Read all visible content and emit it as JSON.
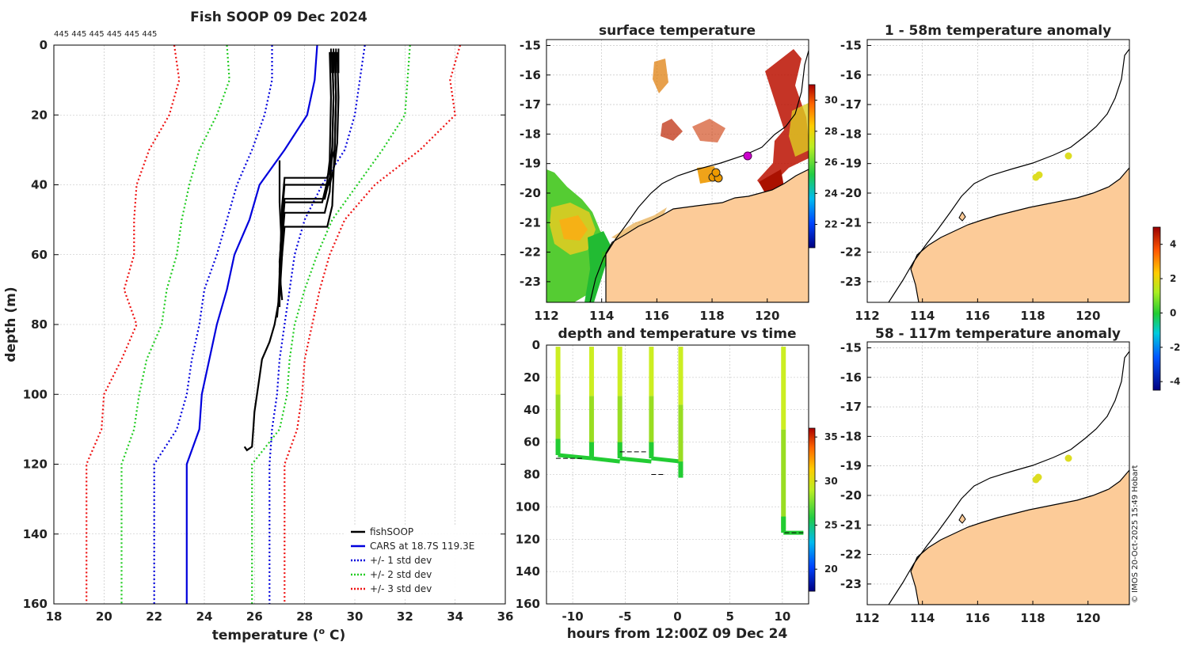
{
  "chart_data": [
    {
      "id": "profile",
      "type": "line",
      "title": "Fish SOOP 09 Dec 2024",
      "xlabel": "temperature (",
      "xlabel_sup": "o",
      "xlabel_tail": " C)",
      "ylabel": "depth (m)",
      "xlim": [
        18,
        36
      ],
      "ylim": [
        0,
        160
      ],
      "y_inverted": true,
      "xticks": [
        18,
        20,
        22,
        24,
        26,
        28,
        30,
        32,
        34,
        36
      ],
      "yticks": [
        0,
        20,
        40,
        60,
        80,
        100,
        120,
        140,
        160
      ],
      "grid": true,
      "top_annotation": "445 445 445 445 445 445",
      "legend_position": "bottom-right",
      "series": [
        {
          "name": "fishSOOP",
          "color": "#000000",
          "dash": "solid",
          "points": []
        },
        {
          "name": "CARS at 18.7S 119.3E",
          "color": "#0000dd",
          "dash": "solid",
          "points": [
            [
              28.5,
              0
            ],
            [
              28.4,
              10
            ],
            [
              28.1,
              20
            ],
            [
              27.2,
              30
            ],
            [
              26.2,
              40
            ],
            [
              25.8,
              50
            ],
            [
              25.2,
              60
            ],
            [
              24.9,
              70
            ],
            [
              24.5,
              80
            ],
            [
              24.2,
              90
            ],
            [
              23.9,
              100
            ],
            [
              23.8,
              110
            ],
            [
              23.3,
              120
            ],
            [
              23.3,
              160
            ]
          ]
        },
        {
          "name": "+/- 1 std dev",
          "color": "#0000dd",
          "dash": "dotted",
          "lines": [
            [
              [
                26.7,
                0
              ],
              [
                26.7,
                10
              ],
              [
                26.4,
                20
              ],
              [
                25.9,
                30
              ],
              [
                25.3,
                40
              ],
              [
                24.9,
                50
              ],
              [
                24.5,
                60
              ],
              [
                24.0,
                70
              ],
              [
                23.8,
                80
              ],
              [
                23.5,
                90
              ],
              [
                23.3,
                100
              ],
              [
                22.9,
                110
              ],
              [
                22.0,
                120
              ],
              [
                22.0,
                160
              ]
            ],
            [
              [
                30.4,
                0
              ],
              [
                30.2,
                10
              ],
              [
                30.0,
                20
              ],
              [
                29.6,
                30
              ],
              [
                28.7,
                40
              ],
              [
                28.0,
                50
              ],
              [
                27.6,
                60
              ],
              [
                27.4,
                70
              ],
              [
                27.2,
                80
              ],
              [
                27.0,
                90
              ],
              [
                26.9,
                100
              ],
              [
                26.7,
                110
              ],
              [
                26.6,
                120
              ],
              [
                26.6,
                160
              ]
            ]
          ]
        },
        {
          "name": "+/- 2 std dev",
          "color": "#22cc22",
          "dash": "dotted",
          "lines": [
            [
              [
                24.9,
                0
              ],
              [
                25.0,
                10
              ],
              [
                24.5,
                20
              ],
              [
                23.8,
                30
              ],
              [
                23.4,
                40
              ],
              [
                23.1,
                50
              ],
              [
                22.9,
                60
              ],
              [
                22.5,
                70
              ],
              [
                22.3,
                80
              ],
              [
                21.7,
                90
              ],
              [
                21.4,
                100
              ],
              [
                21.2,
                110
              ],
              [
                20.7,
                120
              ],
              [
                20.7,
                160
              ]
            ],
            [
              [
                32.2,
                0
              ],
              [
                32.1,
                10
              ],
              [
                32.0,
                20
              ],
              [
                31.1,
                30
              ],
              [
                30.1,
                40
              ],
              [
                29.1,
                50
              ],
              [
                28.5,
                60
              ],
              [
                28.0,
                70
              ],
              [
                27.6,
                80
              ],
              [
                27.4,
                90
              ],
              [
                27.3,
                100
              ],
              [
                27.0,
                110
              ],
              [
                25.9,
                120
              ],
              [
                25.9,
                160
              ]
            ]
          ]
        },
        {
          "name": "+/- 3 std dev",
          "color": "#ee1111",
          "dash": "dotted",
          "lines": [
            [
              [
                22.8,
                0
              ],
              [
                23.0,
                10
              ],
              [
                22.6,
                20
              ],
              [
                21.8,
                30
              ],
              [
                21.3,
                40
              ],
              [
                21.2,
                50
              ],
              [
                21.2,
                60
              ],
              [
                20.8,
                70
              ],
              [
                21.3,
                80
              ],
              [
                20.7,
                90
              ],
              [
                20.0,
                100
              ],
              [
                19.9,
                110
              ],
              [
                19.3,
                120
              ],
              [
                19.3,
                160
              ]
            ],
            [
              [
                34.2,
                0
              ],
              [
                33.8,
                10
              ],
              [
                34.0,
                20
              ],
              [
                32.6,
                30
              ],
              [
                30.8,
                40
              ],
              [
                29.6,
                50
              ],
              [
                29.0,
                60
              ],
              [
                28.6,
                70
              ],
              [
                28.3,
                80
              ],
              [
                28.0,
                90
              ],
              [
                27.9,
                100
              ],
              [
                27.7,
                110
              ],
              [
                27.2,
                120
              ],
              [
                27.2,
                160
              ]
            ]
          ]
        }
      ]
    },
    {
      "id": "surface_map",
      "type": "heatmap",
      "title": "surface temperature",
      "xlim": [
        112,
        121.5
      ],
      "ylim": [
        -23.7,
        -14.8
      ],
      "xticks": [
        112,
        114,
        116,
        118,
        120
      ],
      "yticks": [
        -15,
        -16,
        -17,
        -18,
        -19,
        -20,
        -21,
        -22,
        -23
      ],
      "colorbar": {
        "ticks": [
          22,
          24,
          26,
          28,
          30
        ],
        "range": [
          20.5,
          31
        ]
      }
    },
    {
      "id": "depth_time",
      "type": "scatter",
      "title": "depth and temperature vs time",
      "xlabel": "hours from 12:00Z 09 Dec 24",
      "xlim": [
        -12.5,
        12.5
      ],
      "ylim": [
        0,
        160
      ],
      "y_inverted": true,
      "xticks": [
        -10,
        -5,
        0,
        5,
        10
      ],
      "yticks": [
        0,
        20,
        40,
        60,
        80,
        100,
        120,
        140,
        160
      ],
      "colorbar": {
        "ticks": [
          20,
          25,
          30,
          35
        ],
        "range": [
          17.5,
          36
        ]
      },
      "dives": [
        [
          -11.4,
          68
        ],
        [
          -8.2,
          70
        ],
        [
          -5.5,
          70
        ],
        [
          -2.5,
          70
        ],
        [
          0.3,
          82
        ],
        [
          10.1,
          116
        ]
      ]
    },
    {
      "id": "anomaly_1_58",
      "type": "heatmap",
      "title": "1 - 58m temperature anomaly",
      "xlim": [
        112,
        121.5
      ],
      "ylim": [
        -23.7,
        -14.8
      ],
      "xticks": [
        112,
        114,
        116,
        118,
        120
      ],
      "yticks": [
        -15,
        -16,
        -17,
        -18,
        -19,
        -20,
        -21,
        -22,
        -23
      ]
    },
    {
      "id": "anomaly_58_117",
      "type": "heatmap",
      "title": "58 - 117m temperature anomaly",
      "xlim": [
        112,
        121.5
      ],
      "ylim": [
        -23.7,
        -14.8
      ],
      "xticks": [
        112,
        114,
        116,
        118,
        120
      ],
      "yticks": [
        -15,
        -16,
        -17,
        -18,
        -19,
        -20,
        -21,
        -22,
        -23
      ],
      "colorbar": {
        "ticks": [
          4,
          2,
          0,
          -2,
          -4
        ],
        "range": [
          -4.5,
          5
        ]
      }
    }
  ],
  "credit": "© IMOS 20-Oct-2025 15:49 Hobart"
}
